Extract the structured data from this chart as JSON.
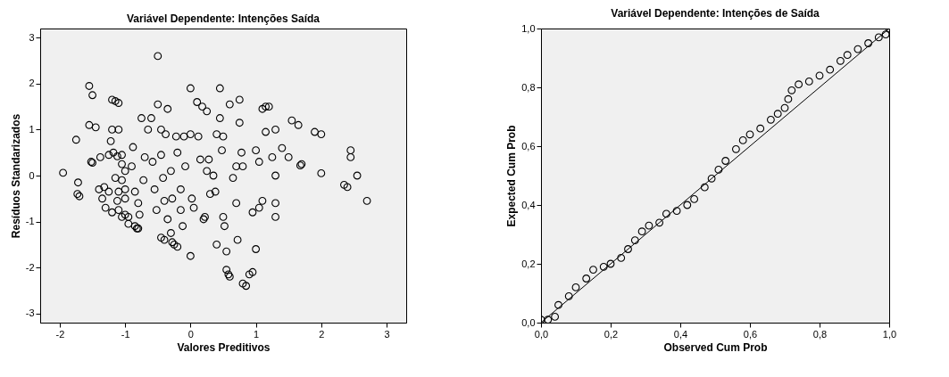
{
  "chart_data": [
    {
      "type": "scatter",
      "title": "Variável Dependente: Intenções Saída",
      "xlabel": "Valores Preditivos",
      "ylabel": "Resíduos Standarizados",
      "marker": "circle",
      "grid": false,
      "xlim": [
        -2.3,
        3.3
      ],
      "ylim": [
        -3.2,
        3.2
      ],
      "xticks": [
        -2,
        -1,
        0,
        1,
        2,
        3
      ],
      "yticks": [
        -3,
        -2,
        -1,
        0,
        1,
        2,
        3
      ],
      "series": [
        {
          "color": "#000000",
          "x": [
            -1.95,
            -1.75,
            -1.73,
            -1.7,
            -1.72,
            -1.55,
            -1.5,
            -1.55,
            -1.45,
            -1.52,
            -1.5,
            -1.38,
            -1.4,
            -1.35,
            -1.3,
            -1.32,
            -1.25,
            -1.2,
            -1.15,
            -1.1,
            -1.2,
            -1.1,
            -1.22,
            -1.18,
            -1.12,
            -1.25,
            -1.05,
            -1.05,
            -1.0,
            -1.15,
            -1.05,
            -1.1,
            -1.0,
            -1.2,
            -1.1,
            -1.05,
            -1.0,
            -0.95,
            -1.12,
            -1.0,
            -0.95,
            -0.85,
            -0.82,
            -0.8,
            -0.88,
            -0.9,
            -0.85,
            -0.8,
            -0.78,
            -0.75,
            -0.7,
            -0.72,
            -0.65,
            -0.6,
            -0.58,
            -0.55,
            -0.52,
            -0.5,
            -0.5,
            -0.45,
            -0.45,
            -0.42,
            -0.4,
            -0.45,
            -0.4,
            -0.35,
            -0.35,
            -0.38,
            -0.3,
            -0.28,
            -0.3,
            -0.28,
            -0.25,
            -0.2,
            -0.22,
            -0.2,
            -0.15,
            -0.1,
            -0.12,
            -0.15,
            -0.08,
            0.0,
            0.0,
            0.02,
            0.0,
            0.05,
            0.1,
            0.12,
            0.15,
            0.18,
            0.2,
            0.22,
            0.25,
            0.25,
            0.28,
            0.3,
            0.35,
            0.38,
            0.4,
            0.4,
            0.45,
            0.45,
            0.48,
            0.5,
            0.5,
            0.52,
            0.55,
            0.55,
            0.58,
            0.6,
            0.6,
            0.65,
            0.7,
            0.7,
            0.72,
            0.75,
            0.75,
            0.78,
            0.8,
            0.8,
            0.85,
            0.9,
            0.95,
            1.0,
            0.95,
            1.0,
            1.05,
            1.05,
            1.1,
            1.1,
            1.15,
            1.2,
            1.15,
            1.25,
            1.3,
            1.3,
            1.3,
            1.3,
            1.4,
            1.5,
            1.55,
            1.65,
            1.7,
            1.68,
            1.9,
            2.0,
            2.0,
            2.35,
            2.4,
            2.45,
            2.45,
            2.55,
            2.7
          ],
          "values": [
            0.06,
            0.78,
            -0.4,
            -0.45,
            -0.15,
            1.95,
            1.75,
            1.1,
            1.05,
            0.3,
            0.28,
            0.4,
            -0.3,
            -0.5,
            -0.7,
            -0.25,
            -0.35,
            1.65,
            1.62,
            1.58,
            1.0,
            1.0,
            0.75,
            0.5,
            0.42,
            0.45,
            0.45,
            0.25,
            0.1,
            -0.05,
            -0.1,
            -0.35,
            -0.3,
            -0.8,
            -0.75,
            -0.9,
            -0.85,
            -0.9,
            -0.55,
            -0.5,
            -1.05,
            -1.1,
            -1.15,
            -1.15,
            0.62,
            0.2,
            -0.35,
            -0.6,
            -0.85,
            1.25,
            0.4,
            -0.1,
            1.0,
            1.25,
            0.3,
            -0.3,
            -0.75,
            2.6,
            1.55,
            1.0,
            0.45,
            -0.05,
            -0.55,
            -1.35,
            -1.4,
            -0.95,
            1.45,
            0.9,
            0.1,
            -0.5,
            -1.25,
            -1.45,
            -1.5,
            -1.55,
            0.85,
            0.5,
            -0.75,
            0.85,
            -1.1,
            -0.3,
            0.2,
            1.9,
            0.9,
            -0.5,
            -1.75,
            -0.7,
            1.6,
            0.85,
            0.35,
            1.5,
            -0.95,
            -0.9,
            1.4,
            0.1,
            0.35,
            -0.4,
            0.0,
            -0.35,
            0.9,
            -1.5,
            1.9,
            1.25,
            0.55,
            0.85,
            -0.9,
            -1.1,
            -1.65,
            -2.05,
            -2.15,
            -2.2,
            1.55,
            -0.05,
            0.2,
            -0.6,
            -1.4,
            1.65,
            1.15,
            0.5,
            0.2,
            -2.35,
            -2.4,
            -2.15,
            -2.1,
            -1.6,
            -0.8,
            0.55,
            0.3,
            -0.7,
            -0.55,
            1.45,
            1.5,
            1.5,
            0.95,
            0.4,
            -0.6,
            -0.9,
            0.0,
            1.0,
            0.6,
            0.4,
            1.2,
            1.1,
            0.25,
            0.22,
            0.95,
            0.9,
            0.05,
            -0.2,
            -0.25,
            0.55,
            0.4,
            0.0,
            -0.55
          ]
        }
      ]
    },
    {
      "type": "scatter",
      "title": "Variável Dependente: Intenções de Saída",
      "xlabel": "Observed Cum Prob",
      "ylabel": "Expected Cum Prob",
      "grid": false,
      "xlim": [
        0,
        1
      ],
      "ylim": [
        0,
        1
      ],
      "xticks": [
        {
          "value": 0,
          "label": "0,0"
        },
        {
          "value": 0.2,
          "label": "0,2"
        },
        {
          "value": 0.4,
          "label": "0,4"
        },
        {
          "value": 0.6,
          "label": "0,6"
        },
        {
          "value": 0.8,
          "label": "0,8"
        },
        {
          "value": 1,
          "label": "1,0"
        }
      ],
      "yticks": [
        {
          "value": 0,
          "label": "0,0"
        },
        {
          "value": 0.2,
          "label": "0,2"
        },
        {
          "value": 0.4,
          "label": "0,4"
        },
        {
          "value": 0.6,
          "label": "0,6"
        },
        {
          "value": 0.8,
          "label": "0,8"
        },
        {
          "value": 1,
          "label": "1,0"
        }
      ],
      "series": [
        {
          "type": "line",
          "marker": "none",
          "line_style": "solid",
          "color": "#000000",
          "x": [
            0,
            1
          ],
          "values": [
            0,
            1
          ]
        },
        {
          "type": "scatter",
          "marker": "circle",
          "color": "#000000",
          "x": [
            0.0,
            0.02,
            0.04,
            0.05,
            0.08,
            0.1,
            0.13,
            0.15,
            0.18,
            0.2,
            0.23,
            0.25,
            0.27,
            0.29,
            0.31,
            0.34,
            0.36,
            0.39,
            0.42,
            0.44,
            0.47,
            0.49,
            0.51,
            0.53,
            0.56,
            0.58,
            0.6,
            0.63,
            0.66,
            0.68,
            0.7,
            0.71,
            0.72,
            0.74,
            0.77,
            0.8,
            0.83,
            0.86,
            0.88,
            0.91,
            0.94,
            0.97,
            0.99,
            1.0
          ],
          "values": [
            0.01,
            0.01,
            0.02,
            0.06,
            0.09,
            0.12,
            0.15,
            0.18,
            0.19,
            0.2,
            0.22,
            0.25,
            0.28,
            0.31,
            0.33,
            0.34,
            0.37,
            0.38,
            0.4,
            0.42,
            0.46,
            0.49,
            0.52,
            0.55,
            0.59,
            0.62,
            0.64,
            0.66,
            0.69,
            0.71,
            0.73,
            0.76,
            0.79,
            0.81,
            0.82,
            0.84,
            0.86,
            0.89,
            0.91,
            0.93,
            0.95,
            0.97,
            0.98,
            1.0
          ]
        }
      ]
    }
  ]
}
